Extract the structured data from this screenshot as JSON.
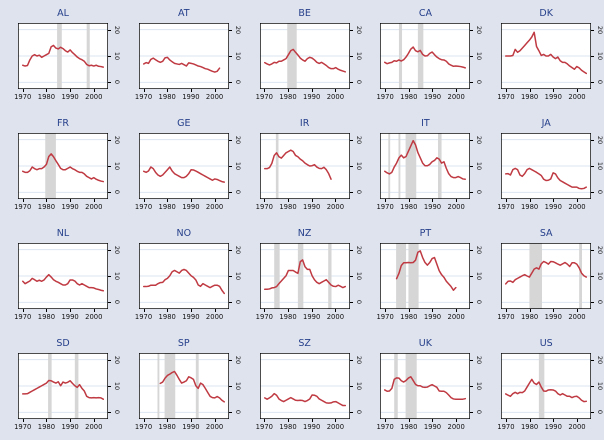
{
  "figure": {
    "background": "#dfe3ee"
  },
  "chart_data": {
    "type": "line",
    "title": "",
    "layout": {
      "rows": 4,
      "cols": 5,
      "legend": "none",
      "grid": "horizontal"
    },
    "x_ticks": [
      1970,
      1980,
      1990,
      2000
    ],
    "y_ticks": [
      0,
      10,
      20
    ],
    "x_range": [
      1968,
      2006
    ],
    "y_range": [
      -2.5,
      22.5
    ],
    "y_axis_side": "right",
    "line_color": "#bf3a42",
    "band_color": "#d6d6d6",
    "grid_color": "#dbe4f3",
    "plot_bg": "#ffffff",
    "title_color": "#26408b",
    "axis_color": "#000000",
    "panels": [
      {
        "title": "AL",
        "start_year": 1970,
        "bands": [
          [
            1984.5,
            1986.5
          ],
          [
            1997,
            1998.3
          ]
        ],
        "values": [
          6.5,
          6.2,
          6.4,
          8.5,
          10,
          10.5,
          10,
          10.3,
          9.5,
          10,
          10.5,
          11,
          13.5,
          14,
          13,
          12.7,
          13.3,
          12.8,
          12,
          11.5,
          12.3,
          11.3,
          10.5,
          9.6,
          9,
          8.6,
          8,
          6.8,
          6.3,
          6.5,
          6.2,
          6.5,
          6.1,
          6,
          5.8
        ]
      },
      {
        "title": "AT",
        "start_year": 1970,
        "bands": [],
        "values": [
          7,
          7.5,
          7.2,
          8.7,
          9.2,
          8.6,
          8,
          7.6,
          8,
          9.3,
          9.5,
          8.5,
          7.8,
          7.2,
          7,
          6.8,
          7.2,
          6.7,
          6.2,
          7.4,
          7.2,
          7,
          6.6,
          6.2,
          6,
          5.6,
          5.2,
          5,
          4.6,
          4.2,
          3.9,
          4.2,
          5.4
        ]
      },
      {
        "title": "BE",
        "start_year": 1970,
        "bands": [
          [
            1979.5,
            1983.5
          ]
        ],
        "values": [
          7.5,
          7,
          6.6,
          7,
          7.6,
          7.4,
          8,
          8,
          8.5,
          9,
          10.5,
          12,
          12.5,
          11.4,
          10.4,
          9.2,
          8.5,
          8,
          9,
          9.5,
          9.2,
          8.5,
          7.6,
          7.2,
          7.6,
          7,
          6.4,
          5.6,
          5.2,
          5.2,
          5.6,
          5,
          4.6,
          4.3,
          4
        ]
      },
      {
        "title": "CA",
        "start_year": 1970,
        "bands": [
          [
            1976,
            1977.3
          ],
          [
            1984,
            1986.3
          ]
        ],
        "values": [
          7.6,
          7.1,
          7.4,
          7.6,
          8.2,
          8,
          8.5,
          8.1,
          8.6,
          9.6,
          11,
          12.6,
          13.4,
          12,
          11.6,
          12.1,
          10.6,
          10,
          10.1,
          11,
          11.5,
          10.5,
          9.6,
          9,
          8.6,
          8.5,
          8,
          7,
          6.5,
          6.1,
          6.2,
          6.1,
          6,
          5.8,
          5.5
        ]
      },
      {
        "title": "DK",
        "start_year": 1970,
        "bands": [],
        "values": [
          10,
          10,
          10,
          10.2,
          12.5,
          11.4,
          12,
          13,
          14,
          15,
          16,
          17.2,
          19,
          13.6,
          12,
          10.2,
          10.6,
          10,
          10,
          10.6,
          9.6,
          9,
          9.6,
          8.2,
          7.6,
          7.6,
          7,
          6.2,
          5.6,
          5,
          6,
          5.5,
          4.6,
          4,
          3.4
        ]
      },
      {
        "title": "FR",
        "start_year": 1970,
        "bands": [
          [
            1979.5,
            1984
          ]
        ],
        "values": [
          8,
          7.6,
          7.6,
          8.2,
          9.6,
          9,
          8.6,
          9,
          9,
          9.6,
          10.6,
          13.6,
          14.6,
          13.5,
          12,
          10.6,
          9.1,
          8.6,
          8.6,
          9.1,
          9.6,
          9,
          8.6,
          8,
          7.6,
          7.6,
          7,
          6.1,
          5.6,
          5.1,
          5.6,
          5,
          4.6,
          4.3,
          4.1
        ]
      },
      {
        "title": "GE",
        "start_year": 1970,
        "bands": [],
        "values": [
          8,
          7.6,
          8.1,
          9.6,
          9,
          7.6,
          6.6,
          6.1,
          6.6,
          7.6,
          8.6,
          9.6,
          8.1,
          7.1,
          6.6,
          6.1,
          5.6,
          5.6,
          6.1,
          7.1,
          8.6,
          8.5,
          8.1,
          7.6,
          7.1,
          6.6,
          6.1,
          5.6,
          5.1,
          4.6,
          5.1,
          4.9,
          4.5,
          4.1,
          3.9
        ]
      },
      {
        "title": "IR",
        "start_year": 1970,
        "bands": [
          [
            1974.7,
            1975.8
          ]
        ],
        "values": [
          9,
          9,
          9.4,
          11,
          14,
          15,
          13.5,
          13,
          14,
          15,
          15.5,
          16,
          15.5,
          14,
          13.5,
          12.6,
          12,
          11.1,
          10.5,
          10,
          10.1,
          10.5,
          9.6,
          9.1,
          9,
          9.5,
          8.6,
          7.1,
          5
        ]
      },
      {
        "title": "IT",
        "start_year": 1970,
        "bands": [
          [
            1971.5,
            1972.3
          ],
          [
            1975.8,
            1976.6
          ],
          [
            1978.8,
            1983.3
          ],
          [
            1992.5,
            1994
          ]
        ],
        "values": [
          8,
          7.4,
          7,
          7.6,
          9.6,
          11.1,
          13.1,
          14.1,
          13.1,
          13.6,
          15.6,
          17.6,
          19.6,
          18,
          15.1,
          13.1,
          11.1,
          10.1,
          10.1,
          10.6,
          11.6,
          12.1,
          13.1,
          12.6,
          11.1,
          11.6,
          9.1,
          7.1,
          6,
          5.6,
          5.6,
          6,
          5.6,
          5.1,
          5
        ]
      },
      {
        "title": "JA",
        "start_year": 1970,
        "bands": [],
        "values": [
          7,
          7.1,
          6.6,
          8.6,
          9.1,
          8.6,
          6.6,
          6.1,
          7.1,
          8.6,
          9.1,
          8.6,
          8.1,
          7.6,
          7,
          6.4,
          5,
          4.5,
          4.6,
          5.1,
          7.4,
          7,
          5.5,
          4.5,
          4,
          3.5,
          3,
          2.5,
          2,
          2,
          2,
          1.5,
          1.4,
          1.5,
          2
        ]
      },
      {
        "title": "NL",
        "start_year": 1970,
        "bands": [],
        "values": [
          8,
          7.1,
          7.6,
          8.1,
          9.1,
          8.6,
          8,
          8.4,
          8,
          8.5,
          9.6,
          10.5,
          9.6,
          8.6,
          8,
          7.6,
          7.1,
          6.6,
          6.6,
          7.1,
          8.5,
          8.5,
          8.1,
          7.1,
          6.6,
          7.1,
          6.6,
          6.1,
          5.6,
          5.6,
          5.5,
          5.1,
          4.9,
          4.6,
          4.4
        ]
      },
      {
        "title": "NO",
        "start_year": 1970,
        "bands": [],
        "values": [
          6,
          6,
          6.1,
          6.5,
          6.5,
          6.5,
          7.1,
          7.5,
          7.6,
          8.6,
          9.1,
          10.1,
          11.6,
          12.1,
          11.6,
          11.1,
          12.1,
          12.5,
          12.1,
          11.1,
          10.1,
          9.5,
          8.5,
          6.6,
          6.1,
          7.1,
          6.6,
          6.1,
          5.6,
          6.1,
          6.5,
          6.5,
          6.1,
          4.6,
          3.4
        ]
      },
      {
        "title": "NZ",
        "start_year": 1970,
        "bands": [
          [
            1974,
            1976.3
          ],
          [
            1984,
            1986.3
          ],
          [
            1996.8,
            1998.2
          ]
        ],
        "values": [
          5,
          5,
          5.1,
          5.5,
          5.6,
          6,
          7.1,
          8.1,
          9.1,
          10.1,
          12.1,
          12.1,
          12.1,
          11.5,
          11,
          15.4,
          16.1,
          13.5,
          12.5,
          12.5,
          10.1,
          8.6,
          7.6,
          7.1,
          7.6,
          8.1,
          8.6,
          7.6,
          6.6,
          6.1,
          6,
          6.5,
          6.1,
          5.6,
          6
        ]
      },
      {
        "title": "PT",
        "start_year": 1975,
        "bands": [
          [
            1974.8,
            1979
          ],
          [
            1980,
            1984.3
          ]
        ],
        "values": [
          9,
          11,
          14,
          15,
          15,
          15.1,
          15,
          15.1,
          16,
          19,
          19.5,
          17,
          15.1,
          14.1,
          15.1,
          16.6,
          17,
          14.5,
          12,
          10.5,
          9.5,
          8,
          7,
          6,
          4.6,
          5.6
        ]
      },
      {
        "title": "SA",
        "start_year": 1970,
        "bands": [
          [
            1980,
            1985.3
          ],
          [
            2001,
            2002.2
          ]
        ],
        "values": [
          7,
          8,
          8.1,
          7.6,
          8.6,
          9.1,
          9.6,
          10.1,
          10.5,
          10,
          9.6,
          11.1,
          12.6,
          13.1,
          12.6,
          14.6,
          15.5,
          15.1,
          14.5,
          15.5,
          15.4,
          15,
          14.5,
          14.1,
          14.6,
          15.1,
          14.5,
          13.6,
          15,
          15,
          14.5,
          13.1,
          11.1,
          10.1,
          9.6
        ]
      },
      {
        "title": "SD",
        "start_year": 1970,
        "bands": [
          [
            1980.7,
            1982.2
          ],
          [
            1992,
            1993.5
          ]
        ],
        "values": [
          7,
          7,
          7.1,
          7.6,
          8.1,
          8.6,
          9.1,
          9.6,
          10.1,
          10.6,
          11.1,
          12.1,
          12,
          11.5,
          11.1,
          11.6,
          10.1,
          11.5,
          11.1,
          11.4,
          12,
          11,
          10.1,
          9.5,
          10.5,
          9.1,
          8.1,
          6.1,
          5.6,
          5.5,
          5.6,
          5.5,
          5.6,
          5.5,
          5
        ]
      },
      {
        "title": "SP",
        "start_year": 1977,
        "bands": [
          [
            1975.8,
            1976.6
          ],
          [
            1978.8,
            1983.3
          ],
          [
            1992,
            1993.2
          ]
        ],
        "values": [
          11,
          11.5,
          13,
          14,
          14.5,
          15.1,
          15.5,
          14.1,
          12.5,
          11.1,
          11.5,
          12,
          13.5,
          13.1,
          12.5,
          10.1,
          9.1,
          11.1,
          10.5,
          9.1,
          7.6,
          6.1,
          5.6,
          5.5,
          6,
          5.5,
          4.6,
          4
        ]
      },
      {
        "title": "SZ",
        "start_year": 1970,
        "bands": [],
        "values": [
          5.5,
          5,
          5.5,
          6.1,
          7.1,
          6.5,
          5.1,
          4.5,
          4.1,
          4.6,
          5.1,
          5.6,
          5.1,
          4.6,
          4.5,
          4.6,
          4.5,
          4.1,
          4.5,
          5.1,
          6.6,
          6.5,
          6.1,
          5.1,
          4.6,
          4.1,
          3.6,
          3.5,
          3.6,
          4,
          4.1,
          3.6,
          3.1,
          2.6,
          2.6
        ]
      },
      {
        "title": "UK",
        "start_year": 1970,
        "bands": [
          [
            1974,
            1975.5
          ],
          [
            1978.8,
            1983.5
          ]
        ],
        "values": [
          8.5,
          8,
          8.1,
          9.1,
          12.5,
          13.1,
          13,
          12,
          11.5,
          12.1,
          13,
          13.5,
          12.1,
          10.6,
          10.1,
          10.1,
          9.6,
          9.5,
          9.6,
          10.1,
          10.5,
          10,
          9.5,
          8.1,
          8,
          8,
          7.5,
          6.6,
          5.6,
          5.1,
          5,
          5,
          5,
          5,
          5.2
        ]
      },
      {
        "title": "US",
        "start_year": 1970,
        "bands": [
          [
            1984,
            1986.3
          ]
        ],
        "values": [
          7,
          6.5,
          6.1,
          7.1,
          7.6,
          7.1,
          7.6,
          7.5,
          8.1,
          9.6,
          11.1,
          12.5,
          11.1,
          10.6,
          11.5,
          9.6,
          8.1,
          8,
          8.5,
          8.6,
          8.5,
          8.1,
          7.1,
          6.6,
          7.1,
          6.6,
          6.1,
          6.1,
          5.6,
          6,
          6.1,
          5.5,
          4.6,
          4.1,
          4.2
        ]
      }
    ]
  }
}
